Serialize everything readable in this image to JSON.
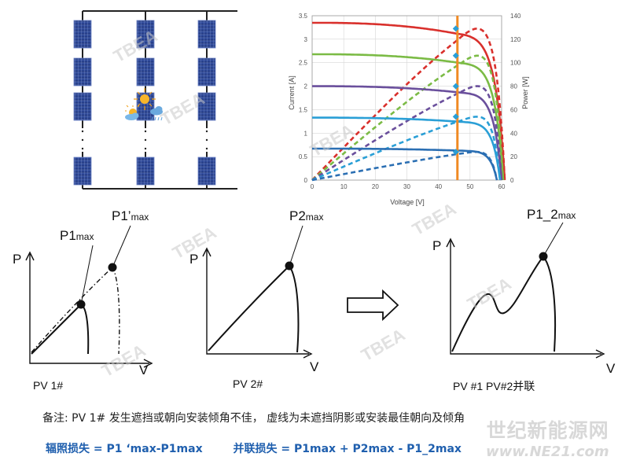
{
  "watermark": {
    "brand": "TBEA",
    "site_name": "世纪新能源网",
    "site_url": "www.NE21.com"
  },
  "chart_data": {
    "type": "line",
    "xlabel": "Voltage [V]",
    "ylabel_left": "Current [A]",
    "ylabel_right": "Power [W]",
    "xlim": [
      0,
      60
    ],
    "ylim_left": [
      0,
      3.5
    ],
    "ylim_right": [
      0,
      140
    ],
    "x_ticks": [
      "0",
      "10",
      "20",
      "30",
      "40",
      "50",
      "60"
    ],
    "y_left_ticks": [
      "0",
      "0.5",
      "1",
      "1.5",
      "2",
      "2.5",
      "3",
      "3.5"
    ],
    "y_right_ticks": [
      "0",
      "20",
      "40",
      "60",
      "80",
      "100",
      "120",
      "140"
    ],
    "grid": true,
    "marker_voltage": 46,
    "marker_color": "#f08a24",
    "series": [
      {
        "color": "#d9302c",
        "isc": 3.35,
        "voc": 61,
        "knee": 46,
        "pmax": [
          45.5,
          129
        ]
      },
      {
        "color": "#7bbb45",
        "isc": 2.68,
        "voc": 60.5,
        "knee": 47,
        "pmax": [
          45.5,
          106
        ]
      },
      {
        "color": "#6a4f9c",
        "isc": 2.0,
        "voc": 60,
        "knee": 47.5,
        "pmax": [
          45.5,
          80
        ]
      },
      {
        "color": "#2a9fd6",
        "isc": 1.33,
        "voc": 59.5,
        "knee": 48,
        "pmax": [
          45.5,
          54
        ]
      },
      {
        "color": "#2b6fb3",
        "isc": 0.67,
        "voc": 58.5,
        "knee": 48.5,
        "pmax": [
          45.5,
          24
        ]
      }
    ]
  },
  "sketches": {
    "pv1": {
      "y_axis": "P",
      "x_axis": "V",
      "point_label": "P1",
      "point_label_sub": "max",
      "dashed_label": "P1’",
      "dashed_label_sub": "max",
      "caption": "PV  1#"
    },
    "pv2": {
      "y_axis": "P",
      "x_axis": "V",
      "point_label": "P2",
      "point_label_sub": "max",
      "caption": "PV 2#"
    },
    "pv12": {
      "y_axis": "P",
      "x_axis": "V",
      "point_label": "P1_2",
      "point_label_sub": "max",
      "caption": "PV #1  PV#2并联"
    }
  },
  "note": "备注: PV 1# 发生遮挡或朝向安装倾角不佳， 虚线为未遮挡阴影或安装最佳朝向及倾角",
  "formulas": {
    "irradiance_loss": "辐照损失 = P1 ‘max-P1max",
    "parallel_loss": "并联损失 = P1max + P2max - P1_2max"
  }
}
